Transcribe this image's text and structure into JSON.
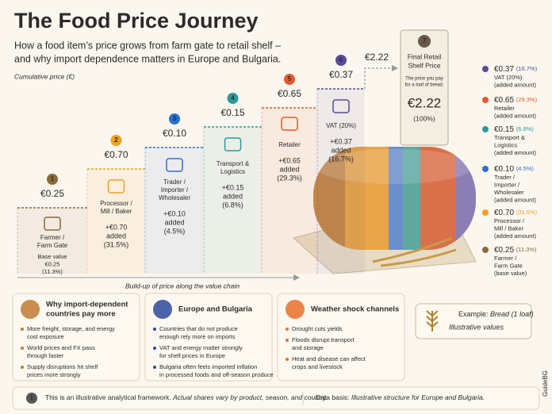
{
  "header": {
    "title": "The Food Price Journey",
    "subtitle": [
      "How a food item’s price grows from farm gate to retail shelf –",
      "and why import dependence matters in Europe and Bulgaria."
    ],
    "axis_note": "Cumulative price (€)"
  },
  "steps": [
    {
      "number": "1",
      "price": "€0.25",
      "label": [
        "Farmer /",
        "Farm Gate"
      ],
      "detail": [
        "Base value",
        "€0.25",
        "(11.3%)"
      ]
    },
    {
      "number": "2",
      "price": "€0.70",
      "label": [
        "Processor /",
        "Mill / Baker"
      ],
      "detail": [
        "+€0.70",
        "added",
        "(31.5%)"
      ]
    },
    {
      "number": "3",
      "price": "€0.10",
      "label": [
        "Trader /",
        "Importer /",
        "Wholesaler"
      ],
      "detail": [
        "+€0.10",
        "added",
        "(4.5%)"
      ]
    },
    {
      "number": "4",
      "price": "€0.15",
      "label": [
        "Transport &",
        "Logistics"
      ],
      "detail": [
        "+€0.15",
        "added",
        "(6.8%)"
      ]
    },
    {
      "number": "5",
      "price": "€0.65",
      "label": [
        "Retailer"
      ],
      "detail": [
        "+€0.65",
        "added",
        "(29.3%)"
      ]
    },
    {
      "number": "6",
      "price": "€0.37",
      "label": [
        "VAT (20%)"
      ],
      "detail": [
        "+€0.37",
        "added",
        "(16.7%)"
      ]
    }
  ],
  "final": {
    "number": "7",
    "price": "€2.22",
    "title": [
      "Final Retail",
      "Shelf Price"
    ],
    "note": [
      "The price you pay",
      "for a loaf of bread."
    ],
    "total": "€2.22",
    "share": "(100%)"
  },
  "chain_note": "Build-up of price along the value chain",
  "legend": [
    {
      "value": "€0.37",
      "share": "(16.7%)",
      "label": [
        "VAT (20%)",
        "(added amount)"
      ]
    },
    {
      "value": "€0.65",
      "share": "(29.3%)",
      "label": [
        "Retailer",
        "(added amount)"
      ]
    },
    {
      "value": "€0.15",
      "share": "(6.8%)",
      "label": [
        "Transport &",
        "Logistics",
        "(added amount)"
      ]
    },
    {
      "value": "€0.10",
      "share": "(4.5%)",
      "label": [
        "Trader /",
        "Importer /",
        "Wholesaler",
        "(added amount)"
      ]
    },
    {
      "value": "€0.70",
      "share": "(31.5%)",
      "label": [
        "Processor /",
        "Mill / Baker",
        "(added amount)"
      ]
    },
    {
      "value": "€0.25",
      "share": "(11.3%)",
      "label": [
        "Farmer /",
        "Farm Gate",
        "(base value)"
      ]
    }
  ],
  "panels": [
    {
      "title": [
        "Why import-dependent",
        "countries pay more"
      ],
      "bullets": [
        [
          "More freight, storage, and energy",
          "cost exposure"
        ],
        [
          "World prices and FX pass",
          "through faster"
        ],
        [
          "Supply disruptions hit shelf",
          "prices more strongly"
        ]
      ]
    },
    {
      "title": [
        "Europe and Bulgaria"
      ],
      "bullets": [
        [
          "Countries that do not produce",
          "enough rely more on imports"
        ],
        [
          "VAT and energy matter strongly",
          "for shelf prices in Europe"
        ],
        [
          "Bulgaria often feels imported inflation",
          "in processed foods and off-season produce"
        ]
      ]
    },
    {
      "title": [
        "Weather shock channels"
      ],
      "bullets": [
        [
          "Drought cuts yields"
        ],
        [
          "Floods disrupt transport",
          "and storage"
        ],
        [
          "Heat and disease can affect",
          "crops and livestock"
        ]
      ]
    }
  ],
  "example": {
    "label": "Example:",
    "item": "Bread (1 loaf)",
    "note": "Illustrative values"
  },
  "footer": {
    "note": "This is an illustrative analytical framework.",
    "caveat": "Actual shares vary by product, season, and country.",
    "basis_label": "Data basis:",
    "basis": "Illustrative structure for Europe and Bulgaria."
  },
  "brand": "GuideBG"
}
